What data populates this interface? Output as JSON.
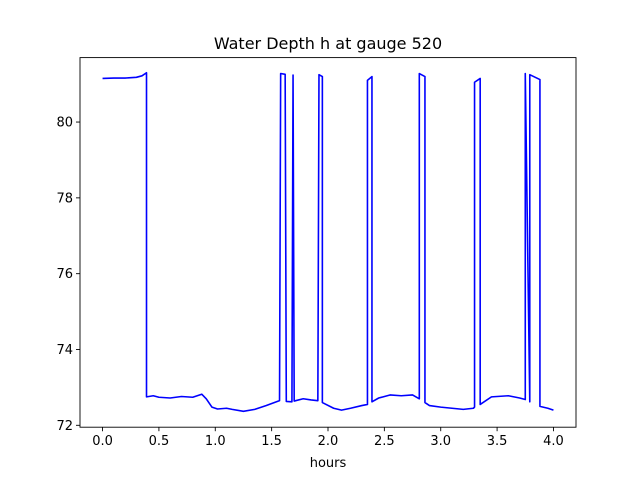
{
  "chart_data": {
    "type": "line",
    "title": "Water Depth h at gauge 520",
    "xlabel": "hours",
    "ylabel": "",
    "xlim": [
      -0.2,
      4.2
    ],
    "ylim": [
      71.95,
      81.7
    ],
    "xticks": [
      0.0,
      0.5,
      1.0,
      1.5,
      2.0,
      2.5,
      3.0,
      3.5,
      4.0
    ],
    "xtick_labels": [
      "0.0",
      "0.5",
      "1.0",
      "1.5",
      "2.0",
      "2.5",
      "3.0",
      "3.5",
      "4.0"
    ],
    "yticks": [
      72,
      74,
      76,
      78,
      80
    ],
    "ytick_labels": [
      "72",
      "74",
      "76",
      "78",
      "80"
    ],
    "grid": false,
    "series": [
      {
        "color": "#0000ff",
        "x": [
          0.0,
          0.1,
          0.2,
          0.3,
          0.35,
          0.39,
          0.39,
          0.45,
          0.5,
          0.6,
          0.7,
          0.8,
          0.88,
          0.92,
          0.97,
          1.02,
          1.1,
          1.15,
          1.25,
          1.35,
          1.45,
          1.57,
          1.58,
          1.62,
          1.63,
          1.68,
          1.69,
          1.7,
          1.78,
          1.85,
          1.91,
          1.92,
          1.95,
          1.95,
          2.05,
          2.12,
          2.2,
          2.3,
          2.35,
          2.35,
          2.39,
          2.39,
          2.45,
          2.55,
          2.65,
          2.75,
          2.81,
          2.81,
          2.86,
          2.86,
          2.9,
          3.0,
          3.1,
          3.2,
          3.29,
          3.3,
          3.3,
          3.35,
          3.35,
          3.45,
          3.6,
          3.7,
          3.75,
          3.75,
          3.79,
          3.79,
          3.88,
          3.88,
          3.95,
          4.0
        ],
        "y": [
          81.15,
          81.16,
          81.16,
          81.18,
          81.22,
          81.3,
          72.75,
          72.78,
          72.74,
          72.72,
          72.76,
          72.74,
          72.82,
          72.7,
          72.48,
          72.43,
          72.45,
          72.42,
          72.37,
          72.42,
          72.52,
          72.65,
          81.28,
          81.26,
          72.63,
          72.62,
          81.24,
          72.64,
          72.7,
          72.67,
          72.65,
          81.25,
          81.2,
          72.6,
          72.45,
          72.4,
          72.45,
          72.52,
          72.55,
          81.1,
          81.2,
          72.62,
          72.72,
          72.8,
          72.78,
          72.8,
          72.7,
          81.28,
          81.2,
          72.6,
          72.52,
          72.48,
          72.45,
          72.42,
          72.45,
          72.48,
          81.05,
          81.15,
          72.55,
          72.75,
          72.78,
          72.72,
          72.68,
          81.28,
          72.62,
          81.25,
          81.12,
          72.5,
          72.45,
          72.4
        ]
      }
    ]
  }
}
